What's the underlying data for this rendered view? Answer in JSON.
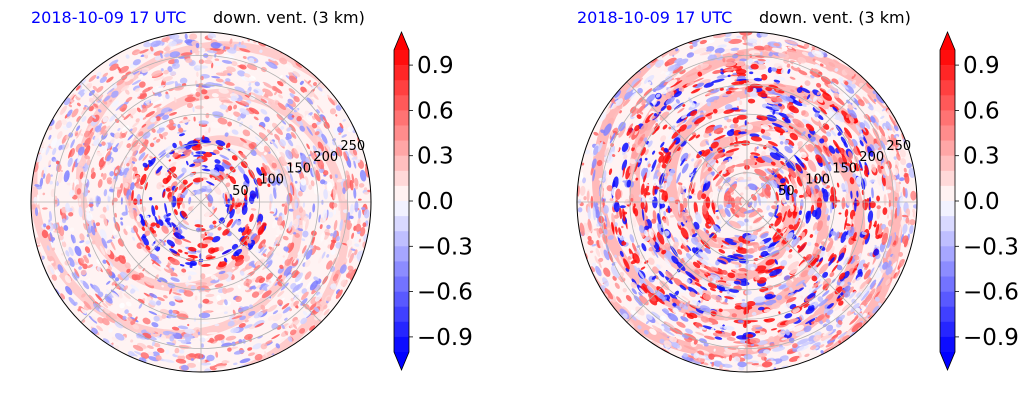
{
  "colors": {
    "negative": "#0000ff",
    "zero": "#ffffff",
    "positive": "#ff0000",
    "title_time": "#0000ff",
    "title_var": "#000000",
    "grid": "#b0b0b0"
  },
  "chart_data": [
    {
      "type": "heatmap",
      "projection": "polar",
      "title_left": "2018-10-09 17 UTC",
      "title_right": "down. vent. (3 km)",
      "radial_ticks": [
        "50",
        "100",
        "150",
        "200",
        "250"
      ],
      "radial_tick_values": [
        50,
        100,
        150,
        200,
        250
      ],
      "r_max": 290,
      "grid": true,
      "colorbar": {
        "vmin": -1.0,
        "vmax": 1.0,
        "ticks": [
          0.9,
          0.6,
          0.3,
          0.0,
          -0.3,
          -0.6,
          -0.9
        ],
        "tick_labels": [
          "0.9",
          "0.6",
          "0.3",
          "0.0",
          "−0.3",
          "−0.6",
          "−0.9"
        ],
        "levels": 20,
        "extend": "both"
      }
    },
    {
      "type": "heatmap",
      "projection": "polar",
      "title_left": "2018-10-09 17 UTC",
      "title_right": "down. vent. (3 km)",
      "radial_ticks": [
        "50",
        "100",
        "150",
        "200",
        "250"
      ],
      "radial_tick_values": [
        50,
        100,
        150,
        200,
        250
      ],
      "r_max": 290,
      "grid": true,
      "colorbar": {
        "vmin": -1.0,
        "vmax": 1.0,
        "ticks": [
          0.9,
          0.6,
          0.3,
          0.0,
          -0.3,
          -0.6,
          -0.9
        ],
        "tick_labels": [
          "0.9",
          "0.6",
          "0.3",
          "0.0",
          "−0.3",
          "−0.6",
          "−0.9"
        ],
        "levels": 20,
        "extend": "both"
      }
    }
  ]
}
